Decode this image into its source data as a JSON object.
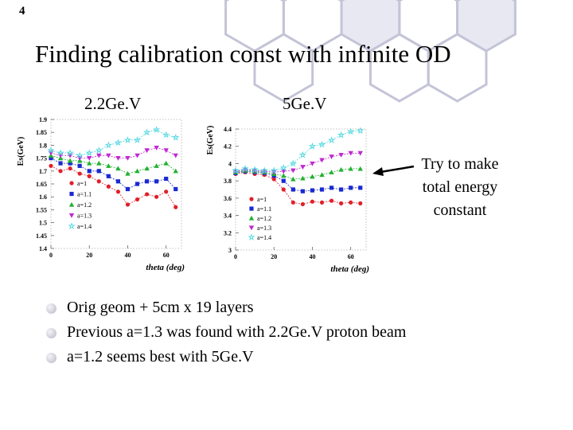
{
  "slide_number": "4",
  "title": "Finding calibration const with infinite OD",
  "colors": {
    "hex_fill": "#e8e8f2",
    "hex_stroke": "#c4c4d8"
  },
  "charts": [
    {
      "heading": "2.2Ge.V"
    },
    {
      "heading": "5Ge.V"
    }
  ],
  "annotation": {
    "lines": [
      "Try to make",
      "total energy",
      "constant"
    ]
  },
  "bullets": [
    "Orig geom + 5cm x 19 layers",
    "Previous a=1.3 was found with 2.2Ge.V proton beam",
    "a=1.2 seems best with 5Ge.V"
  ],
  "chart_data": [
    {
      "type": "scatter",
      "title": "2.2Ge.V",
      "xlabel": "theta (deg)",
      "ylabel": "Es(GeV)",
      "xlim": [
        0,
        68
      ],
      "ylim": [
        1.4,
        1.9
      ],
      "xticks": [
        0,
        20,
        40,
        60
      ],
      "xtick_labels": [
        "0",
        "20",
        "40",
        "60"
      ],
      "yticks": [
        1.4,
        1.45,
        1.5,
        1.55,
        1.6,
        1.65,
        1.7,
        1.75,
        1.8,
        1.85,
        1.9
      ],
      "ytick_labels": [
        "1.4",
        "1.45",
        "1.5",
        "1.55",
        "1.6",
        "1.65",
        "1.7",
        "1.75",
        "1.8",
        "1.85",
        "1.9"
      ],
      "x": [
        0,
        5,
        10,
        15,
        20,
        25,
        30,
        35,
        40,
        45,
        50,
        55,
        60,
        65
      ],
      "series": [
        {
          "name": "a=1",
          "color": "#e0202a",
          "marker": "circle",
          "values": [
            1.72,
            1.7,
            1.71,
            1.69,
            1.68,
            1.66,
            1.64,
            1.62,
            1.57,
            1.59,
            1.61,
            1.6,
            1.62,
            1.56
          ]
        },
        {
          "name": "a=1.1",
          "color": "#1a2ad0",
          "marker": "square",
          "values": [
            1.75,
            1.73,
            1.73,
            1.72,
            1.7,
            1.7,
            1.68,
            1.66,
            1.63,
            1.65,
            1.66,
            1.66,
            1.67,
            1.63
          ]
        },
        {
          "name": "a=1.2",
          "color": "#22b030",
          "marker": "triangle",
          "values": [
            1.76,
            1.75,
            1.74,
            1.74,
            1.73,
            1.73,
            1.72,
            1.71,
            1.69,
            1.7,
            1.71,
            1.72,
            1.73,
            1.7
          ]
        },
        {
          "name": "a=1.3",
          "color": "#c028d0",
          "marker": "triangle-down",
          "values": [
            1.77,
            1.76,
            1.76,
            1.75,
            1.75,
            1.76,
            1.76,
            1.75,
            1.75,
            1.76,
            1.78,
            1.79,
            1.78,
            1.76
          ]
        },
        {
          "name": "a=1.4",
          "color": "#50d8e0",
          "marker": "star",
          "values": [
            1.78,
            1.77,
            1.77,
            1.76,
            1.77,
            1.78,
            1.8,
            1.81,
            1.82,
            1.82,
            1.85,
            1.86,
            1.84,
            1.83
          ]
        }
      ]
    },
    {
      "type": "scatter",
      "title": "5Ge.V",
      "xlabel": "theta (deg)",
      "ylabel": "Es(GeV)",
      "xlim": [
        0,
        68
      ],
      "ylim": [
        3,
        4.4
      ],
      "xticks": [
        0,
        20,
        40,
        60
      ],
      "xtick_labels": [
        "0",
        "20",
        "40",
        "60"
      ],
      "yticks": [
        3,
        3.2,
        3.4,
        3.6,
        3.8,
        4,
        4.2,
        4.4
      ],
      "ytick_labels": [
        "3",
        "3.2",
        "3.4",
        "3.6",
        "3.8",
        "4",
        "4.2",
        "4.4"
      ],
      "x": [
        0,
        5,
        10,
        15,
        20,
        25,
        30,
        35,
        40,
        45,
        50,
        55,
        60,
        65
      ],
      "series": [
        {
          "name": "a=1",
          "color": "#e0202a",
          "marker": "circle",
          "values": [
            3.88,
            3.9,
            3.88,
            3.87,
            3.82,
            3.7,
            3.55,
            3.53,
            3.56,
            3.55,
            3.57,
            3.54,
            3.55,
            3.54
          ]
        },
        {
          "name": "a=1.1",
          "color": "#1a2ad0",
          "marker": "square",
          "values": [
            3.89,
            3.91,
            3.9,
            3.89,
            3.86,
            3.8,
            3.7,
            3.68,
            3.69,
            3.7,
            3.72,
            3.7,
            3.72,
            3.72
          ]
        },
        {
          "name": "a=1.2",
          "color": "#22b030",
          "marker": "triangle",
          "values": [
            3.9,
            3.92,
            3.91,
            3.9,
            3.88,
            3.86,
            3.82,
            3.83,
            3.85,
            3.87,
            3.9,
            3.93,
            3.94,
            3.94
          ]
        },
        {
          "name": "a=1.3",
          "color": "#c028d0",
          "marker": "triangle-down",
          "values": [
            3.91,
            3.93,
            3.92,
            3.91,
            3.9,
            3.91,
            3.92,
            3.96,
            4.0,
            4.04,
            4.08,
            4.1,
            4.12,
            4.12
          ]
        },
        {
          "name": "a=1.4",
          "color": "#50d8e0",
          "marker": "star",
          "values": [
            3.92,
            3.94,
            3.93,
            3.92,
            3.92,
            3.95,
            4.0,
            4.1,
            4.2,
            4.22,
            4.27,
            4.33,
            4.37,
            4.38
          ]
        }
      ]
    }
  ]
}
